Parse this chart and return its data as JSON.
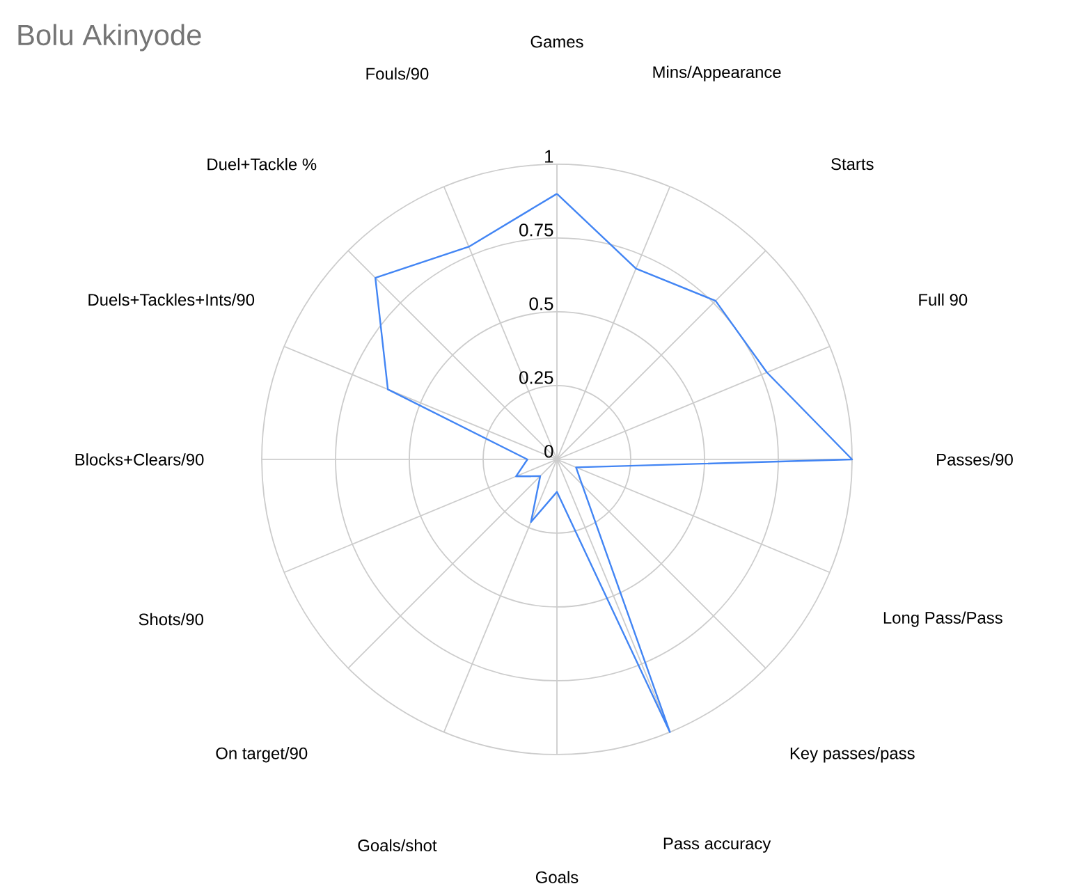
{
  "chart_data": {
    "type": "radar",
    "title": "Bolu Akinyode",
    "categories": [
      "Games",
      "Mins/Appearance",
      "Starts",
      "Full 90",
      "Passes/90",
      "Long Pass/Pass",
      "Key passes/pass",
      "Pass accuracy",
      "Goals",
      "Goals/shot",
      "On target/90",
      "Shots/90",
      "Blocks+Clears/90",
      "Duels+Tackles+Ints/90",
      "Duel+Tackle %",
      "Fouls/90"
    ],
    "series": [
      {
        "color": "#4285f4",
        "values": [
          0.9,
          0.7,
          0.76,
          0.77,
          1.0,
          0.07,
          0.12,
          1.0,
          0.11,
          0.23,
          0.08,
          0.15,
          0.1,
          0.62,
          0.87,
          0.78
        ]
      }
    ],
    "ylim": [
      0,
      1
    ],
    "yticks": [
      0,
      0.25,
      0.5,
      0.75,
      1
    ],
    "grid": true,
    "marker": "none"
  }
}
